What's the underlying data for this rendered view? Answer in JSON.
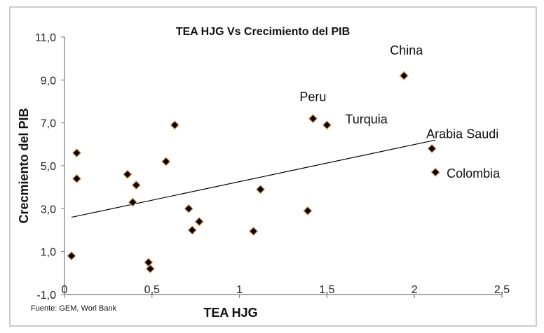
{
  "chart_data": {
    "type": "scatter",
    "title": "TEA HJG Vs Crecimiento del PIB",
    "xlabel": "TEA HJG",
    "ylabel": "Crecmiento del PIB",
    "source": "Fuente: GEM, Worl Bank",
    "xlim": [
      0,
      2.5
    ],
    "ylim": [
      -1.0,
      11.0
    ],
    "x_ticks": [
      0,
      0.5,
      1,
      1.5,
      2,
      2.5
    ],
    "x_tick_labels": [
      "0",
      "0,5",
      "1",
      "1,5",
      "2",
      "2,5"
    ],
    "y_ticks": [
      -1.0,
      1.0,
      3.0,
      5.0,
      7.0,
      9.0,
      11.0
    ],
    "y_tick_labels": [
      "-1,0",
      "1,0",
      "3,0",
      "5,0",
      "7,0",
      "9,0",
      "11,0"
    ],
    "grid": false,
    "marker": {
      "shape": "diamond",
      "fill": "#000000",
      "edge": "#e8a060"
    },
    "points": [
      {
        "x": 0.04,
        "y": 0.8
      },
      {
        "x": 0.07,
        "y": 5.6
      },
      {
        "x": 0.07,
        "y": 4.4
      },
      {
        "x": 0.36,
        "y": 4.6
      },
      {
        "x": 0.39,
        "y": 3.3
      },
      {
        "x": 0.41,
        "y": 4.1
      },
      {
        "x": 0.48,
        "y": 0.5
      },
      {
        "x": 0.49,
        "y": 0.2
      },
      {
        "x": 0.58,
        "y": 5.2
      },
      {
        "x": 0.63,
        "y": 6.9
      },
      {
        "x": 0.71,
        "y": 3.0
      },
      {
        "x": 0.73,
        "y": 2.0
      },
      {
        "x": 0.77,
        "y": 2.4
      },
      {
        "x": 1.08,
        "y": 1.95
      },
      {
        "x": 1.12,
        "y": 3.9
      },
      {
        "x": 1.39,
        "y": 2.9
      },
      {
        "x": 1.42,
        "y": 7.2,
        "label": "Peru"
      },
      {
        "x": 1.5,
        "y": 6.9,
        "label": "Turquia"
      },
      {
        "x": 1.94,
        "y": 9.2,
        "label": "China"
      },
      {
        "x": 2.1,
        "y": 5.8,
        "label": "Arabia Saudi"
      },
      {
        "x": 2.12,
        "y": 4.7,
        "label": "Colombia"
      }
    ],
    "trendline": {
      "x": [
        0.04,
        2.12
      ],
      "y": [
        2.6,
        6.2
      ]
    }
  }
}
